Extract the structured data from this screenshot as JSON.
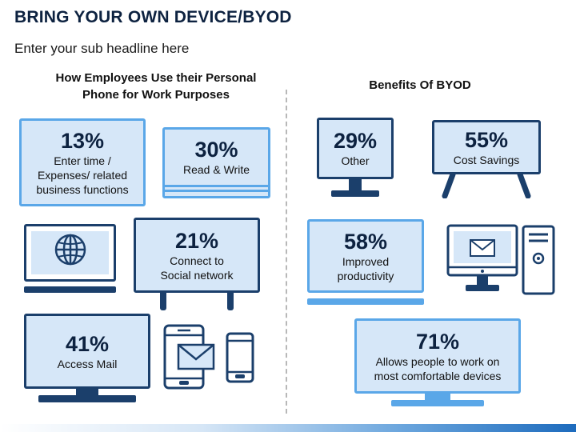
{
  "header": {
    "title": "BRING YOUR OWN DEVICE/BYOD",
    "subtitle": "Enter your sub headline here"
  },
  "left_section": {
    "heading_line1": "How Employees Use their Personal",
    "heading_line2": "Phone for Work Purposes",
    "items": [
      {
        "percent": "13%",
        "label_lines": [
          "Enter time /",
          "Expenses/ related",
          "business functions"
        ]
      },
      {
        "percent": "30%",
        "label_lines": [
          "Read & Write"
        ]
      },
      {
        "percent": "21%",
        "label_lines": [
          "Connect to",
          "Social network"
        ]
      },
      {
        "percent": "41%",
        "label_lines": [
          "Access Mail"
        ]
      }
    ]
  },
  "right_section": {
    "heading": "Benefits Of BYOD",
    "items": [
      {
        "percent": "29%",
        "label_lines": [
          "Other"
        ]
      },
      {
        "percent": "55%",
        "label_lines": [
          "Cost Savings"
        ]
      },
      {
        "percent": "58%",
        "label_lines": [
          "Improved",
          "productivity"
        ]
      },
      {
        "percent": "71%",
        "label_lines": [
          "Allows people to work on",
          "most comfortable devices"
        ]
      }
    ]
  },
  "colors": {
    "dark_navy": "#1b3f6b",
    "light_blue": "#5aa7e8",
    "box_fill": "#d6e7f8"
  },
  "icons": [
    "laptop-globe-icon",
    "tablet-mail-icon",
    "smartphone-icon",
    "desktop-mail-icon",
    "cpu-tower-icon"
  ]
}
